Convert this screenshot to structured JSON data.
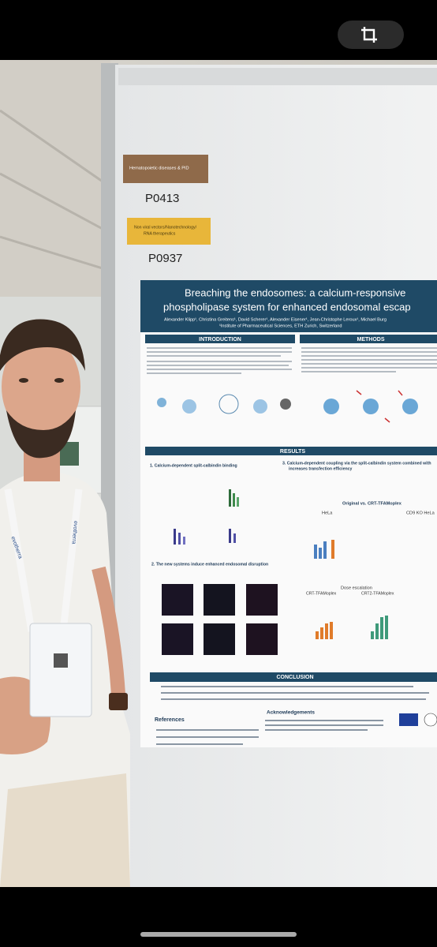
{
  "labels": {
    "topic1": "Hematopoietic diseases & PID",
    "code1": "P0413",
    "topic2_line1": "Non viral vectors/Nanotechnology/",
    "topic2_line2": "RNA therapeutics",
    "code2": "P0937"
  },
  "poster": {
    "title_line1": "Breaching the endosomes: a calcium-responsive",
    "title_line2": "phospholipase system for enhanced endosomal escap",
    "authors": "Alexander Klipp¹, Christina Greitens¹, David Scherer¹, Alexander Eisener¹, Jean-Christophe Leroux¹, Michael Burg",
    "affiliation": "¹Institute of Pharmaceutical Sciences, ETH Zurich, Switzerland",
    "introduction": "INTRODUCTION",
    "methods": "METHODS",
    "results": "RESULTS",
    "conclusion": "CONCLUSION",
    "sub1": "1. Calcium-dependent split-calbindin binding",
    "sub2": "2. The new systems induce enhanced endosomal disruption",
    "sub3_line1": "3. Calcium-dependent coupling via the split-calbindin system combined with",
    "sub3_line2": "increases transfection efficiency",
    "original_vs": "Original vs. CRT-TFAMoplex",
    "hela": "HeLa",
    "cd9": "CD9 KO HeLa",
    "dose": "Dose escalation",
    "crt": "CRT-TFAMoplex",
    "crt2": "CRT2-TFAMoplex",
    "references": "References",
    "acknowledgements": "Acknowledgements"
  },
  "lanyard": "evotherra"
}
